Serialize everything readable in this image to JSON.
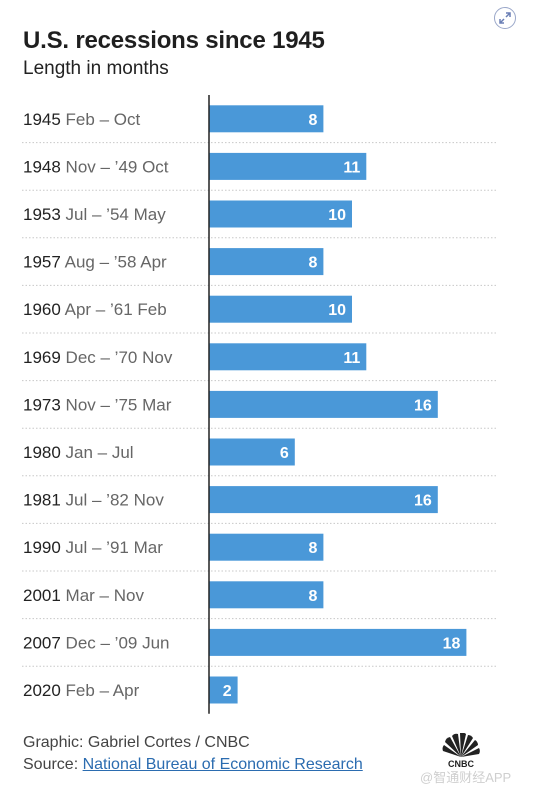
{
  "header": {
    "title": "U.S. recessions since 1945",
    "subtitle": "Length in months"
  },
  "footer": {
    "credit": "Graphic: Gabriel Cortes / CNBC",
    "source_prefix": "Source: ",
    "source_link": "National Bureau of Economic Research"
  },
  "watermark": "@智通财经APP",
  "colors": {
    "bar": "#4a98d8",
    "bar_text": "#ffffff",
    "divider": "#c8c8c8",
    "axis": "#222222"
  },
  "chart_data": {
    "type": "bar",
    "orientation": "horizontal",
    "title": "U.S. recessions since 1945",
    "subtitle": "Length in months",
    "categories": [
      {
        "year": "1945",
        "span": "Feb – Oct"
      },
      {
        "year": "1948",
        "span": "Nov – ’49 Oct"
      },
      {
        "year": "1953",
        "span": "Jul – ’54 May"
      },
      {
        "year": "1957",
        "span": "Aug – ’58 Apr"
      },
      {
        "year": "1960",
        "span": "Apr – ’61 Feb"
      },
      {
        "year": "1969",
        "span": "Dec – ’70 Nov"
      },
      {
        "year": "1973",
        "span": "Nov – ’75 Mar"
      },
      {
        "year": "1980",
        "span": "Jan – Jul"
      },
      {
        "year": "1981",
        "span": "Jul – ’82 Nov"
      },
      {
        "year": "1990",
        "span": "Jul – ’91 Mar"
      },
      {
        "year": "2001",
        "span": "Mar – Nov"
      },
      {
        "year": "2007",
        "span": "Dec – ’09 Jun"
      },
      {
        "year": "2020",
        "span": "Feb – Apr"
      }
    ],
    "values": [
      8,
      11,
      10,
      8,
      10,
      11,
      16,
      6,
      16,
      8,
      8,
      18,
      2
    ],
    "xlim": [
      0,
      18
    ],
    "data_labels": true,
    "grid": false
  }
}
